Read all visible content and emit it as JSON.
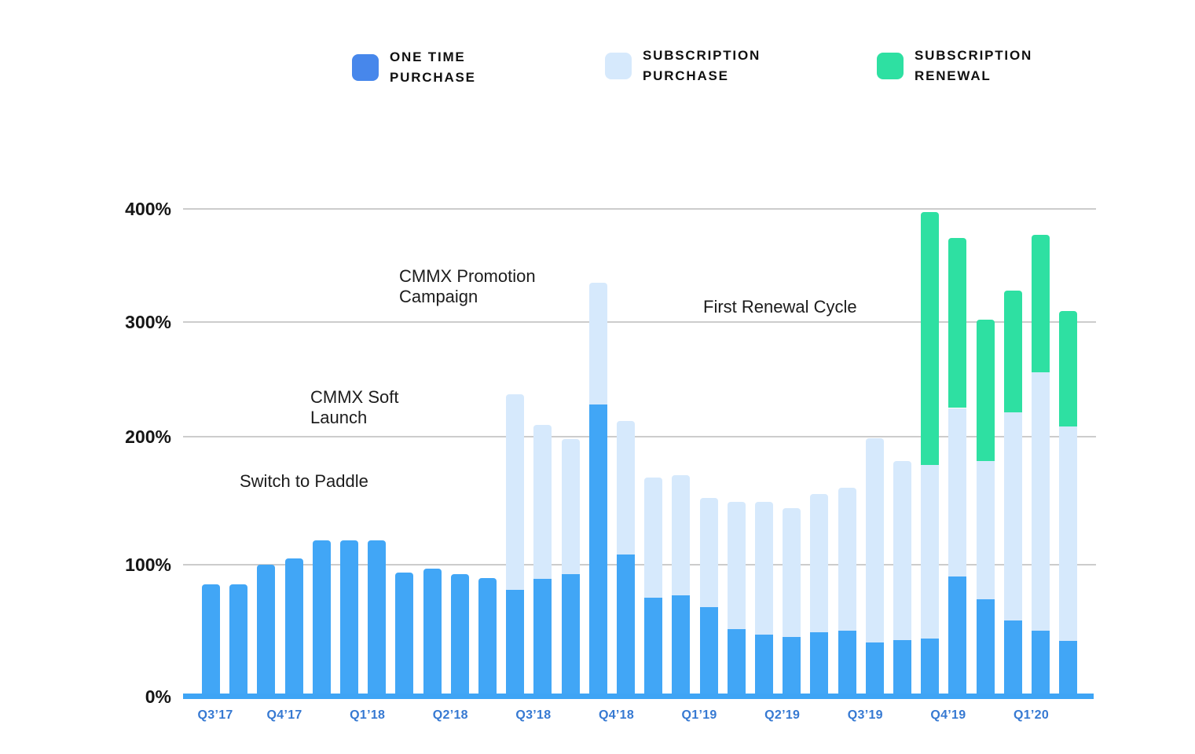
{
  "legend": {
    "items": [
      {
        "id": "one-time-purchase",
        "label": "ONE TIME\nPURCHASE",
        "color": "#4787eb"
      },
      {
        "id": "subscription-purchase",
        "label": "SUBSCRIPTION\nPURCHASE",
        "color": "#d6e9fc"
      },
      {
        "id": "subscription-renewal",
        "label": "SUBSCRIPTION\nRENEWAL",
        "color": "#2ee0a2"
      }
    ]
  },
  "colors": {
    "one_time_bar": "#41a6f6",
    "subscription_purchase_bar": "#d6e9fc",
    "subscription_renewal_bar": "#2ee0a2",
    "axis_line": "#3ea4f5",
    "gridline": "#cccccc",
    "x_label": "#3679d2",
    "y_label": "#161616"
  },
  "chart_data": {
    "type": "bar",
    "stacked": true,
    "unit": "percent",
    "title": "",
    "xlabel": "",
    "ylabel": "",
    "grid": true,
    "legend_position": "top",
    "series_names": [
      "One Time Purchase",
      "Subscription Purchase",
      "Subscription Renewal"
    ],
    "y_axis": {
      "range": [
        0,
        400
      ],
      "ticks": [
        0,
        100,
        200,
        300,
        400
      ],
      "tick_labels": [
        "0%",
        "100%",
        "200%",
        "300%",
        "400%"
      ]
    },
    "x_axis": {
      "quarters": [
        "Q3’17",
        "Q4’17",
        "Q1’18",
        "Q2’18",
        "Q3’18",
        "Q4’18",
        "Q1’19",
        "Q2’19",
        "Q3’19",
        "Q4’19",
        "Q1’20"
      ]
    },
    "bars_note": "values are cumulative stack tops in %; one_time = blue, sub_purchase = light blue top, sub_renewal = green top",
    "bars": [
      {
        "quarter": "Q3’17",
        "one_time": 85,
        "sub_purchase": null,
        "sub_renewal": null
      },
      {
        "quarter": "Q3’17",
        "one_time": 85,
        "sub_purchase": null,
        "sub_renewal": null
      },
      {
        "quarter": "Q4’17",
        "one_time": 100,
        "sub_purchase": null,
        "sub_renewal": null
      },
      {
        "quarter": "Q4’17",
        "one_time": 105,
        "sub_purchase": null,
        "sub_renewal": null
      },
      {
        "quarter": "Q4’17",
        "one_time": 119,
        "sub_purchase": null,
        "sub_renewal": null
      },
      {
        "quarter": "Q1’18",
        "one_time": 119,
        "sub_purchase": null,
        "sub_renewal": null
      },
      {
        "quarter": "Q1’18",
        "one_time": 119,
        "sub_purchase": null,
        "sub_renewal": null
      },
      {
        "quarter": "Q1’18",
        "one_time": 94,
        "sub_purchase": null,
        "sub_renewal": null
      },
      {
        "quarter": "Q2’18",
        "one_time": 97,
        "sub_purchase": null,
        "sub_renewal": null
      },
      {
        "quarter": "Q2’18",
        "one_time": 93,
        "sub_purchase": null,
        "sub_renewal": null
      },
      {
        "quarter": "Q2’18",
        "one_time": 90,
        "sub_purchase": null,
        "sub_renewal": null
      },
      {
        "quarter": "Q3’18",
        "one_time": 81,
        "sub_purchase": 237,
        "sub_renewal": null
      },
      {
        "quarter": "Q3’18",
        "one_time": 89,
        "sub_purchase": 210,
        "sub_renewal": null
      },
      {
        "quarter": "Q3’18",
        "one_time": 93,
        "sub_purchase": 198,
        "sub_renewal": null
      },
      {
        "quarter": "Q4’18",
        "one_time": 228,
        "sub_purchase": 335,
        "sub_renewal": null
      },
      {
        "quarter": "Q4’18",
        "one_time": 108,
        "sub_purchase": 214,
        "sub_renewal": null
      },
      {
        "quarter": "Q4’18",
        "one_time": 75,
        "sub_purchase": 168,
        "sub_renewal": null
      },
      {
        "quarter": "Q1’19",
        "one_time": 77,
        "sub_purchase": 170,
        "sub_renewal": null
      },
      {
        "quarter": "Q1’19",
        "one_time": 68,
        "sub_purchase": 152,
        "sub_renewal": null
      },
      {
        "quarter": "Q1’19",
        "one_time": 51,
        "sub_purchase": 149,
        "sub_renewal": null
      },
      {
        "quarter": "Q2’19",
        "one_time": 47,
        "sub_purchase": 149,
        "sub_renewal": null
      },
      {
        "quarter": "Q2’19",
        "one_time": 45,
        "sub_purchase": 144,
        "sub_renewal": null
      },
      {
        "quarter": "Q2’19",
        "one_time": 49,
        "sub_purchase": 155,
        "sub_renewal": null
      },
      {
        "quarter": "Q3’19",
        "one_time": 50,
        "sub_purchase": 160,
        "sub_renewal": null
      },
      {
        "quarter": "Q3’19",
        "one_time": 41,
        "sub_purchase": 199,
        "sub_renewal": null
      },
      {
        "quarter": "Q3’19",
        "one_time": 43,
        "sub_purchase": 181,
        "sub_renewal": null
      },
      {
        "quarter": "Q4’19",
        "one_time": 44,
        "sub_purchase": 178,
        "sub_renewal": 397
      },
      {
        "quarter": "Q4’19",
        "one_time": 91,
        "sub_purchase": 225,
        "sub_renewal": 374
      },
      {
        "quarter": "Q4’19",
        "one_time": 74,
        "sub_purchase": 181,
        "sub_renewal": 302
      },
      {
        "quarter": "Q1’20",
        "one_time": 58,
        "sub_purchase": 221,
        "sub_renewal": 328
      },
      {
        "quarter": "Q1’20",
        "one_time": 50,
        "sub_purchase": 256,
        "sub_renewal": 377
      },
      {
        "quarter": "Q1’20",
        "one_time": 42,
        "sub_purchase": 209,
        "sub_renewal": 310
      }
    ],
    "annotations": [
      {
        "id": "switch-to-paddle",
        "text": "Switch to Paddle"
      },
      {
        "id": "cmmx-soft-launch",
        "text": "CMMX Soft\nLaunch"
      },
      {
        "id": "cmmx-promotion-campaign",
        "text": "CMMX Promotion\nCampaign"
      },
      {
        "id": "first-renewal-cycle",
        "text": "First Renewal Cycle"
      }
    ]
  }
}
